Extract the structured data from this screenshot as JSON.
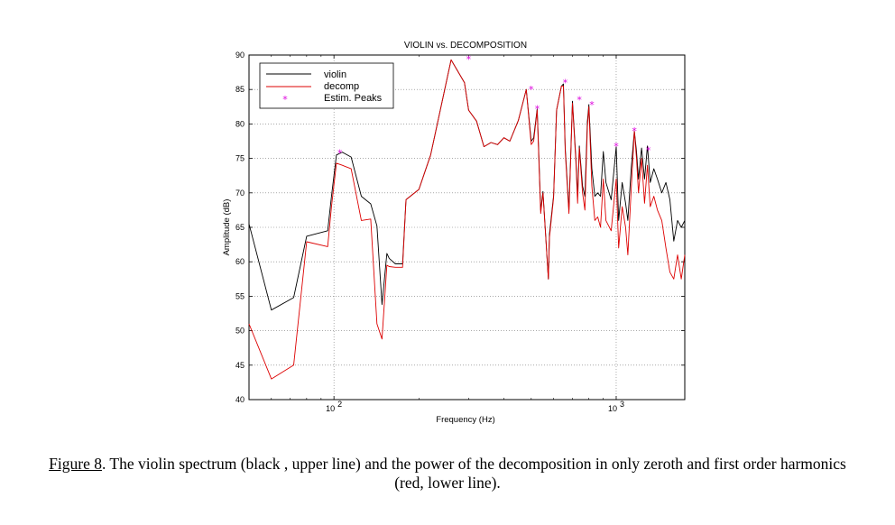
{
  "chart_data": {
    "type": "line",
    "title": "VIOLIN vs. DECOMPOSITION",
    "xlabel": "Frequency  (Hz)",
    "ylabel": "Amplitude  (dB)",
    "x_scale": "log",
    "xlim": [
      50,
      1750
    ],
    "ylim": [
      40,
      90
    ],
    "yticks": [
      40,
      45,
      50,
      55,
      60,
      65,
      70,
      75,
      80,
      85,
      90
    ],
    "ytick_labels": [
      "40",
      "45",
      "50",
      "55",
      "60",
      "65",
      "70",
      "75",
      "80",
      "85",
      "90"
    ],
    "xticks": [
      100,
      1000
    ],
    "xtick_labels": [
      {
        "base": "10",
        "exp": "2"
      },
      {
        "base": "10",
        "exp": "3"
      }
    ],
    "grid": true,
    "legend_position": "top-left",
    "series": [
      {
        "name": "violin",
        "color": "#000000",
        "x": [
          50,
          60,
          72,
          80,
          95,
          98,
          102,
          107,
          115,
          125,
          135,
          142,
          148,
          154,
          157,
          165,
          175,
          180,
          200,
          220,
          260,
          290,
          300,
          320,
          340,
          360,
          380,
          400,
          420,
          450,
          480,
          500,
          510,
          525,
          530,
          540,
          550,
          575,
          580,
          600,
          615,
          640,
          650,
          660,
          680,
          700,
          720,
          730,
          740,
          760,
          775,
          790,
          800,
          820,
          840,
          860,
          880,
          900,
          920,
          960,
          1000,
          1020,
          1050,
          1080,
          1100,
          1130,
          1160,
          1180,
          1200,
          1230,
          1260,
          1290,
          1320,
          1360,
          1400,
          1450,
          1500,
          1550,
          1600,
          1650,
          1700,
          1750
        ],
        "y": [
          65.5,
          53,
          54.8,
          63.7,
          64.5,
          69.5,
          75.5,
          75.9,
          75.2,
          69.5,
          68.4,
          65.2,
          53.8,
          61.2,
          60.5,
          59.7,
          59.7,
          69,
          70.5,
          75.5,
          89.3,
          86,
          82,
          80.4,
          76.7,
          77.3,
          77,
          78,
          77.5,
          80.5,
          85,
          77.5,
          78,
          82.2,
          77.5,
          67.5,
          70.2,
          57.5,
          64,
          69.6,
          82,
          85.5,
          85.8,
          76.5,
          67.5,
          83.3,
          75,
          69.5,
          76.8,
          71,
          69.5,
          80.3,
          82.8,
          73.5,
          69.5,
          70,
          69.5,
          76,
          71.5,
          69,
          76.7,
          66,
          71.5,
          68.5,
          66,
          73.5,
          79,
          76,
          72,
          76.5,
          72,
          76.8,
          71.5,
          73.5,
          72,
          70,
          71.5,
          69,
          63,
          66,
          65,
          66
        ]
      },
      {
        "name": "decomp",
        "color": "#dd0000",
        "x": [
          50,
          60,
          72,
          80,
          95,
          98,
          102,
          107,
          115,
          125,
          135,
          142,
          148,
          154,
          157,
          165,
          175,
          180,
          200,
          220,
          260,
          290,
          300,
          320,
          340,
          360,
          380,
          400,
          420,
          450,
          480,
          500,
          510,
          525,
          530,
          540,
          550,
          575,
          580,
          600,
          615,
          640,
          650,
          660,
          680,
          700,
          720,
          730,
          740,
          760,
          775,
          790,
          800,
          820,
          840,
          860,
          880,
          900,
          920,
          960,
          1000,
          1020,
          1050,
          1080,
          1100,
          1130,
          1160,
          1180,
          1200,
          1230,
          1260,
          1290,
          1320,
          1360,
          1400,
          1450,
          1500,
          1550,
          1600,
          1650,
          1700,
          1750
        ],
        "y": [
          51,
          43,
          45,
          62.9,
          62.2,
          68,
          74.3,
          74,
          73.5,
          66,
          66.2,
          51,
          48.8,
          59.5,
          59.3,
          59.2,
          59.2,
          69,
          70.5,
          75.5,
          89.3,
          86,
          82,
          80.4,
          76.7,
          77.3,
          77,
          78,
          77.5,
          80.5,
          85,
          77,
          77.5,
          82,
          77,
          67,
          70,
          57.5,
          63.5,
          69.3,
          82,
          85.5,
          85.5,
          76,
          67,
          83,
          74.5,
          68.5,
          76.5,
          70,
          67.5,
          79.5,
          82.5,
          71,
          66,
          66.5,
          65,
          72,
          66,
          64.5,
          72,
          62,
          68,
          65,
          61,
          70.5,
          79,
          75,
          70,
          75,
          68.5,
          74,
          68,
          69.5,
          67.5,
          66,
          62,
          58.5,
          57.5,
          61,
          57.5,
          61
        ]
      },
      {
        "name": "Estim. Peaks",
        "color": "#dd00dd",
        "marker": "*",
        "x": [
          105,
          300,
          500,
          525,
          660,
          740,
          820,
          1000,
          1160,
          1300
        ],
        "y": [
          75.8,
          89.4,
          85,
          82.2,
          86,
          83.5,
          82.8,
          76.8,
          79,
          76.2
        ]
      }
    ]
  },
  "caption": {
    "label": "Figure 8",
    "text": ". The violin spectrum (black , upper line) and the power of the decomposition in only zeroth and first order harmonics (red, lower line)."
  }
}
